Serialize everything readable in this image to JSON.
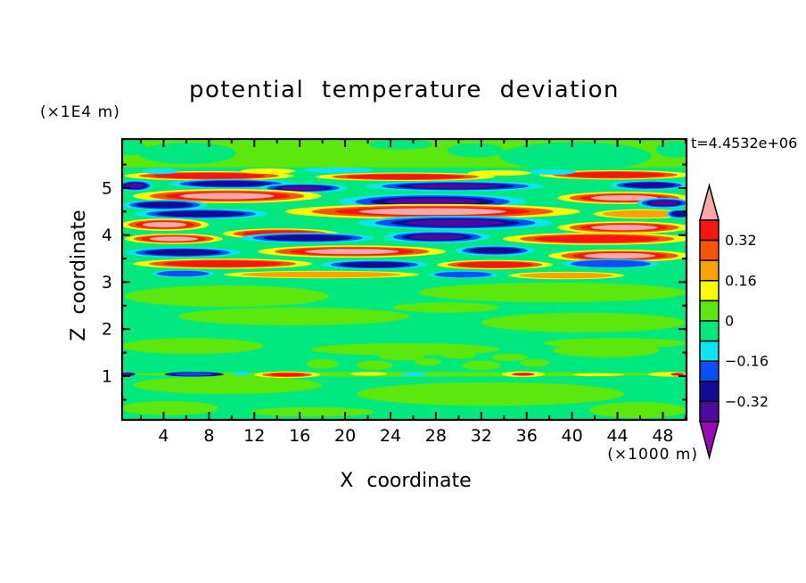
{
  "title": "potential temperature deviation",
  "time_label": "t=4.4532e+06",
  "axes": {
    "x": {
      "label": "X coordinate",
      "unit": "(×1000 m)",
      "tick_labels": [
        "4",
        "8",
        "12",
        "16",
        "20",
        "24",
        "28",
        "32",
        "36",
        "40",
        "44",
        "48"
      ],
      "tick_values": [
        4,
        8,
        12,
        16,
        20,
        24,
        28,
        32,
        36,
        40,
        44,
        48
      ],
      "minor_tick_values": [
        2,
        6,
        10,
        14,
        18,
        22,
        26,
        30,
        34,
        38,
        42,
        46,
        50
      ],
      "range": [
        0.35,
        50.1
      ]
    },
    "z": {
      "label": "Z coordinate",
      "unit": "(×1E4 m)",
      "tick_labels": [
        "1",
        "2",
        "3",
        "4",
        "5"
      ],
      "tick_values": [
        1,
        2,
        3,
        4,
        5
      ],
      "minor_tick_values": [
        0.5,
        1.5,
        2.5,
        3.5,
        4.5,
        5.5
      ],
      "range": [
        0.07,
        6.04
      ]
    }
  },
  "palette": {
    "pink": "#f6a9a9",
    "red": "#f51511",
    "orangered": "#f85406",
    "orange": "#faa306",
    "yellow": "#fdfb03",
    "chartreuse": "#5ce80c",
    "spring": "#00e87e",
    "cyan": "#0de3f2",
    "blue": "#0a4ff2",
    "navy": "#140a98",
    "indigo": "#4d0b9e",
    "magenta": "#980bb4"
  },
  "colorbar": {
    "segment_colors": [
      "red",
      "orangered",
      "orange",
      "yellow",
      "chartreuse",
      "spring",
      "cyan",
      "blue",
      "navy",
      "indigo"
    ],
    "top_arrow_color": "pink",
    "bottom_arrow_color": "magenta",
    "labels": [
      {
        "text": "0.32",
        "boundary": 1
      },
      {
        "text": "0.16",
        "boundary": 3
      },
      {
        "text": "0",
        "boundary": 5
      },
      {
        "text": "−0.16",
        "boundary": 7
      },
      {
        "text": "−0.32",
        "boundary": 9
      }
    ]
  },
  "chart_data": {
    "type": "filled_contour",
    "title": "potential temperature deviation",
    "xlabel": "X coordinate (×1000 m)",
    "ylabel": "Z coordinate (×1E4 m)",
    "time": "t=4.4532e+06",
    "x_range_km": [
      0,
      50
    ],
    "z_range_1e4m": [
      0,
      6
    ],
    "contour_interval": 0.08,
    "level_boundaries": [
      0.4,
      0.32,
      0.24,
      0.16,
      0.08,
      0,
      -0.08,
      -0.16,
      -0.24,
      -0.32,
      -0.4
    ],
    "legend_position": "right-colorbar",
    "grid": false,
    "description": "Vertical cross-section of potential temperature deviation: near-zero field below z=3, a turbulent wave-breaking band of alternating warm (+) and cold (−) horizontal streaks between z=3 and z=5.5, weakly positive layer above z=5.5, and a thin perturbed sheet near z=1.",
    "background_level": "spring",
    "top_band": {
      "z_from": 5.44,
      "z_to": 6.04,
      "color": "chartreuse",
      "spring_blobs": [
        [
          6.1,
          5.74,
          4.3,
          0.23
        ],
        [
          40.3,
          5.68,
          6.7,
          0.3
        ],
        [
          49.1,
          5.82,
          1.7,
          0.17
        ],
        [
          24.9,
          5.93,
          2.8,
          0.11
        ],
        [
          1.0,
          5.87,
          1.4,
          0.17
        ],
        [
          31.5,
          5.8,
          2.5,
          0.15
        ]
      ]
    },
    "green_patches": [
      [
        9.6,
        2.7,
        9.0,
        0.23
      ],
      [
        38.3,
        2.78,
        11.8,
        0.21
      ],
      [
        15.5,
        2.27,
        10.2,
        0.19
      ],
      [
        41.0,
        2.14,
        9.0,
        0.21
      ],
      [
        6.5,
        1.64,
        6.3,
        0.17
      ],
      [
        25.3,
        1.57,
        8.3,
        0.13
      ],
      [
        43.0,
        1.55,
        4.7,
        0.15
      ],
      [
        28.9,
        2.46,
        4.7,
        0.11
      ],
      [
        43.8,
        1.7,
        6.3,
        0.11
      ],
      [
        18.0,
        1.26,
        1.4,
        0.1
      ],
      [
        22.6,
        1.23,
        1.6,
        0.1
      ],
      [
        27.3,
        1.3,
        1.2,
        0.08
      ],
      [
        32.0,
        1.23,
        1.7,
        0.1
      ],
      [
        36.7,
        1.28,
        1.3,
        0.08
      ],
      [
        25.0,
        1.42,
        2.0,
        0.09
      ],
      [
        30.0,
        1.45,
        1.5,
        0.08
      ],
      [
        34.5,
        1.4,
        1.6,
        0.08
      ],
      [
        9.6,
        0.81,
        8.3,
        0.19
      ],
      [
        32.8,
        0.62,
        11.8,
        0.25
      ],
      [
        4.5,
        0.32,
        4.3,
        0.15
      ],
      [
        45.8,
        0.28,
        4.3,
        0.17
      ],
      [
        17.1,
        0.24,
        5.5,
        0.1
      ],
      [
        25.2,
        1.04,
        25.0,
        0.05
      ]
    ],
    "streaks": [
      [
        "w",
        8.0,
        5.26,
        7.5,
        0.1,
        3
      ],
      [
        "w",
        25.3,
        5.24,
        7.9,
        0.09,
        3
      ],
      [
        "w",
        43.8,
        5.28,
        6.7,
        0.1,
        3
      ],
      [
        "w",
        13.2,
        5.36,
        2.4,
        0.06,
        1
      ],
      [
        "w",
        33.6,
        5.32,
        2.8,
        0.06,
        1
      ],
      [
        "c",
        3.7,
        5.36,
        1.6,
        0.06,
        1
      ],
      [
        "c",
        19.4,
        5.38,
        3.1,
        0.06,
        1
      ],
      [
        "c",
        38.3,
        5.34,
        2.0,
        0.06,
        1
      ],
      [
        "c",
        9.9,
        5.09,
        5.5,
        0.1,
        3
      ],
      [
        "c",
        29.7,
        5.04,
        7.9,
        0.11,
        4
      ],
      [
        "c",
        16.3,
        5.0,
        3.9,
        0.1,
        4
      ],
      [
        "c",
        46.8,
        5.06,
        3.5,
        0.1,
        3
      ],
      [
        "c",
        1.5,
        5.05,
        1.6,
        0.12,
        4
      ],
      [
        "w",
        9.6,
        4.83,
        8.3,
        0.15,
        4
      ],
      [
        "w",
        44.6,
        4.79,
        5.9,
        0.13,
        4
      ],
      [
        "c",
        27.7,
        4.71,
        8.3,
        0.17,
        4
      ],
      [
        "c",
        4.1,
        4.64,
        3.8,
        0.11,
        3
      ],
      [
        "c",
        48.1,
        4.68,
        2.4,
        0.11,
        4
      ],
      [
        "w",
        27.7,
        4.5,
        13.0,
        0.16,
        4
      ],
      [
        "c",
        7.3,
        4.45,
        5.9,
        0.11,
        3
      ],
      [
        "w",
        46.2,
        4.45,
        4.3,
        0.1,
        2
      ],
      [
        "c",
        49.5,
        4.45,
        1.2,
        0.1,
        3
      ],
      [
        "c",
        29.7,
        4.26,
        8.6,
        0.15,
        4
      ],
      [
        "w",
        4.1,
        4.22,
        3.9,
        0.13,
        4
      ],
      [
        "w",
        44.6,
        4.16,
        5.9,
        0.13,
        4
      ],
      [
        "w",
        14.3,
        4.03,
        5.1,
        0.11,
        3
      ],
      [
        "w",
        4.9,
        3.92,
        4.3,
        0.11,
        4
      ],
      [
        "c",
        16.7,
        3.94,
        5.9,
        0.11,
        3
      ],
      [
        "c",
        28.1,
        3.96,
        4.7,
        0.13,
        4
      ],
      [
        "w",
        42.2,
        3.92,
        8.3,
        0.13,
        3
      ],
      [
        "w",
        20.6,
        3.65,
        8.3,
        0.13,
        4
      ],
      [
        "c",
        5.7,
        3.63,
        5.1,
        0.11,
        3
      ],
      [
        "c",
        33.2,
        3.67,
        3.5,
        0.11,
        3
      ],
      [
        "w",
        44.2,
        3.56,
        6.3,
        0.13,
        4
      ],
      [
        "w",
        9.2,
        3.39,
        7.9,
        0.11,
        3
      ],
      [
        "c",
        22.6,
        3.37,
        4.7,
        0.1,
        3
      ],
      [
        "w",
        33.2,
        3.37,
        5.1,
        0.1,
        3
      ],
      [
        "c",
        43.4,
        3.39,
        4.3,
        0.1,
        2
      ],
      [
        "w",
        17.9,
        3.16,
        8.6,
        0.08,
        2
      ],
      [
        "c",
        30.4,
        3.16,
        3.1,
        0.08,
        2
      ],
      [
        "c",
        5.7,
        3.18,
        2.8,
        0.08,
        2
      ],
      [
        "w",
        39.5,
        3.14,
        5.1,
        0.08,
        2
      ]
    ],
    "thin_line": {
      "z": 1.04,
      "segments": [
        [
          0.8,
          1.04,
          0.7,
          0.04,
          "indigo"
        ],
        [
          6.7,
          1.04,
          2.6,
          0.05,
          "navy"
        ],
        [
          6.7,
          1.04,
          1.7,
          0.03,
          "blue"
        ],
        [
          10.9,
          1.06,
          0.8,
          0.04,
          "cyan"
        ],
        [
          14.9,
          1.03,
          2.9,
          0.07,
          "yellow"
        ],
        [
          14.9,
          1.03,
          2.2,
          0.05,
          "orangered"
        ],
        [
          14.9,
          1.03,
          1.6,
          0.034,
          "red"
        ],
        [
          22.1,
          1.05,
          1.6,
          0.04,
          "yellow"
        ],
        [
          26.1,
          1.04,
          1.2,
          0.04,
          "cyan"
        ],
        [
          35.7,
          1.04,
          1.9,
          0.06,
          "yellow"
        ],
        [
          35.7,
          1.04,
          1.0,
          0.032,
          "red"
        ],
        [
          42.3,
          1.03,
          2.3,
          0.03,
          "yellow"
        ],
        [
          48.6,
          1.04,
          1.9,
          0.05,
          "yellow"
        ],
        [
          49.3,
          1.04,
          0.6,
          0.03,
          "red"
        ]
      ]
    }
  }
}
